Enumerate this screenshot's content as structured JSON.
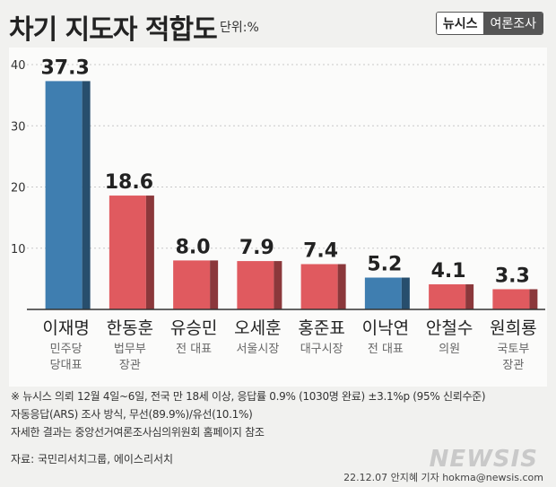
{
  "header": {
    "title": "차기 지도자 적합도",
    "unit": "단위:%",
    "logo": {
      "left": "뉴시스",
      "right": "여론조사"
    }
  },
  "chart_data": {
    "type": "bar",
    "categories": [
      "이재명",
      "한동훈",
      "유승민",
      "오세훈",
      "홍준표",
      "이낙연",
      "안철수",
      "원희룡"
    ],
    "subtitles": [
      [
        "민주당",
        "당대표"
      ],
      [
        "법무부",
        "장관"
      ],
      [
        "전 대표"
      ],
      [
        "서울시장"
      ],
      [
        "대구시장"
      ],
      [
        "전 대표"
      ],
      [
        "의원"
      ],
      [
        "국토부",
        "장관"
      ]
    ],
    "values": [
      37.3,
      18.6,
      8.0,
      7.9,
      7.4,
      5.2,
      4.1,
      3.3
    ],
    "value_labels": [
      "37.3",
      "18.6",
      "8.0",
      "7.9",
      "7.4",
      "5.2",
      "4.1",
      "3.3"
    ],
    "bar_colors": [
      "#3f7eb0",
      "#e05a5f",
      "#e05a5f",
      "#e05a5f",
      "#e05a5f",
      "#3f7eb0",
      "#e05a5f",
      "#e05a5f"
    ],
    "yticks": [
      10,
      20,
      30,
      40
    ],
    "ylim": [
      0,
      40
    ],
    "grid": true
  },
  "notes": [
    "※ 뉴시스 의뢰 12월 4일~6일, 전국 만 18세 이상, 응답률 0.9% (1030명 완료) ±3.1%p (95% 신뢰수준)",
    "자동응답(ARS) 조사 방식, 무선(89.9%)/유선(10.1%)",
    "자세한 결과는 중앙선거여론조사심의위원회 홈페이지 참조"
  ],
  "source": "자료: 국민리서치그룹, 에이스리서치",
  "credit": "22.12.07 안지혜 기자 hokma@newsis.com",
  "watermark": "NEWSIS"
}
